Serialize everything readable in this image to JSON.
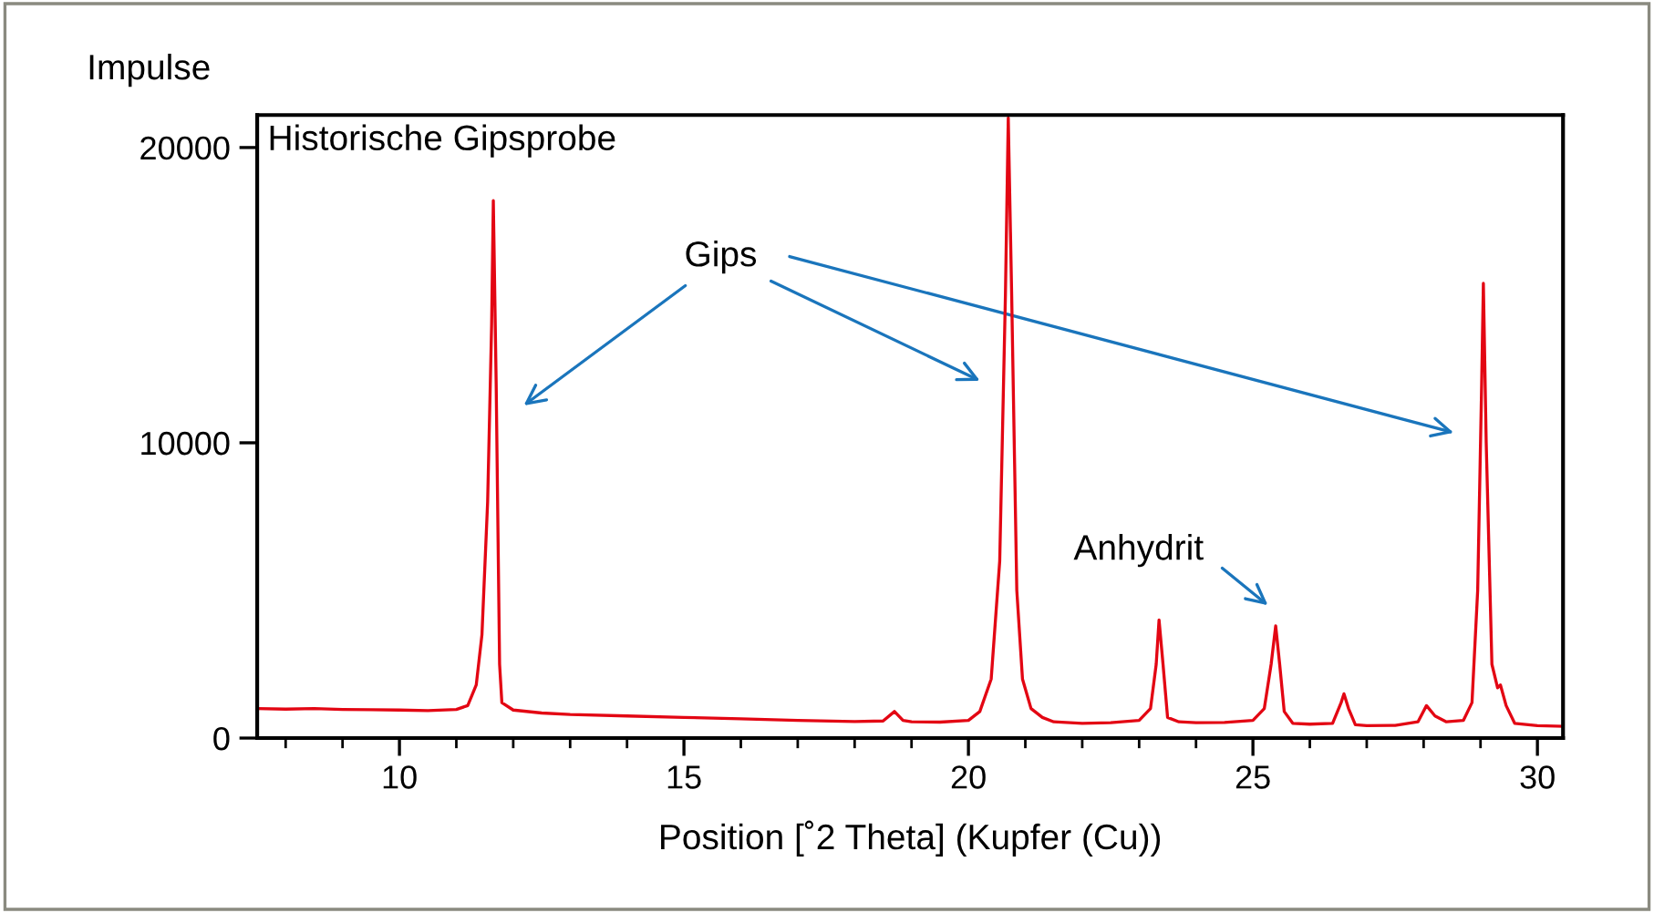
{
  "chart_data": {
    "type": "line",
    "title": "Historische Gipsprobe",
    "ylabel": "Impulse",
    "xlabel": "Position [˚2 Theta] (Kupfer (Cu))",
    "x": [
      7.5,
      8,
      8.5,
      9,
      9.5,
      10,
      10.5,
      11,
      11.2,
      11.35,
      11.45,
      11.55,
      11.62,
      11.65,
      11.7,
      11.76,
      11.8,
      12,
      12.5,
      13,
      14,
      15,
      16,
      17,
      18,
      18.5,
      18.7,
      18.85,
      19,
      19.5,
      20,
      20.2,
      20.4,
      20.55,
      20.65,
      20.7,
      20.76,
      20.85,
      20.95,
      21.1,
      21.3,
      21.5,
      22,
      22.5,
      23,
      23.2,
      23.3,
      23.35,
      23.42,
      23.5,
      23.7,
      24,
      24.5,
      25,
      25.2,
      25.32,
      25.4,
      25.47,
      25.55,
      25.7,
      26,
      26.4,
      26.55,
      26.6,
      26.68,
      26.8,
      27,
      27.5,
      27.9,
      28.05,
      28.2,
      28.4,
      28.7,
      28.85,
      28.95,
      29.02,
      29.05,
      29.1,
      29.2,
      29.3,
      29.35,
      29.45,
      29.6,
      30,
      30.45
    ],
    "series": [
      {
        "color": "#e30613",
        "values": [
          1000,
          980,
          1000,
          970,
          960,
          950,
          930,
          970,
          1100,
          1800,
          3500,
          8000,
          14000,
          18200,
          12000,
          2500,
          1200,
          950,
          850,
          800,
          750,
          700,
          650,
          600,
          560,
          580,
          900,
          600,
          550,
          540,
          600,
          900,
          2000,
          6000,
          15000,
          21000,
          15000,
          5000,
          2000,
          1000,
          700,
          550,
          500,
          520,
          600,
          1000,
          2500,
          4000,
          2500,
          700,
          550,
          520,
          530,
          600,
          1000,
          2500,
          3800,
          2500,
          900,
          500,
          470,
          500,
          1200,
          1500,
          1000,
          450,
          420,
          430,
          550,
          1100,
          750,
          550,
          600,
          1200,
          5000,
          12000,
          15400,
          10000,
          2500,
          1700,
          1800,
          1100,
          500,
          420,
          400
        ]
      }
    ],
    "xlim": [
      7.5,
      30.45
    ],
    "ylim": [
      0,
      21100
    ],
    "xticks": [
      10,
      15,
      20,
      25,
      30
    ],
    "yticks": [
      0,
      10000,
      20000
    ],
    "grid": false,
    "annotations": [
      "Gips",
      "Anhydrit"
    ]
  }
}
